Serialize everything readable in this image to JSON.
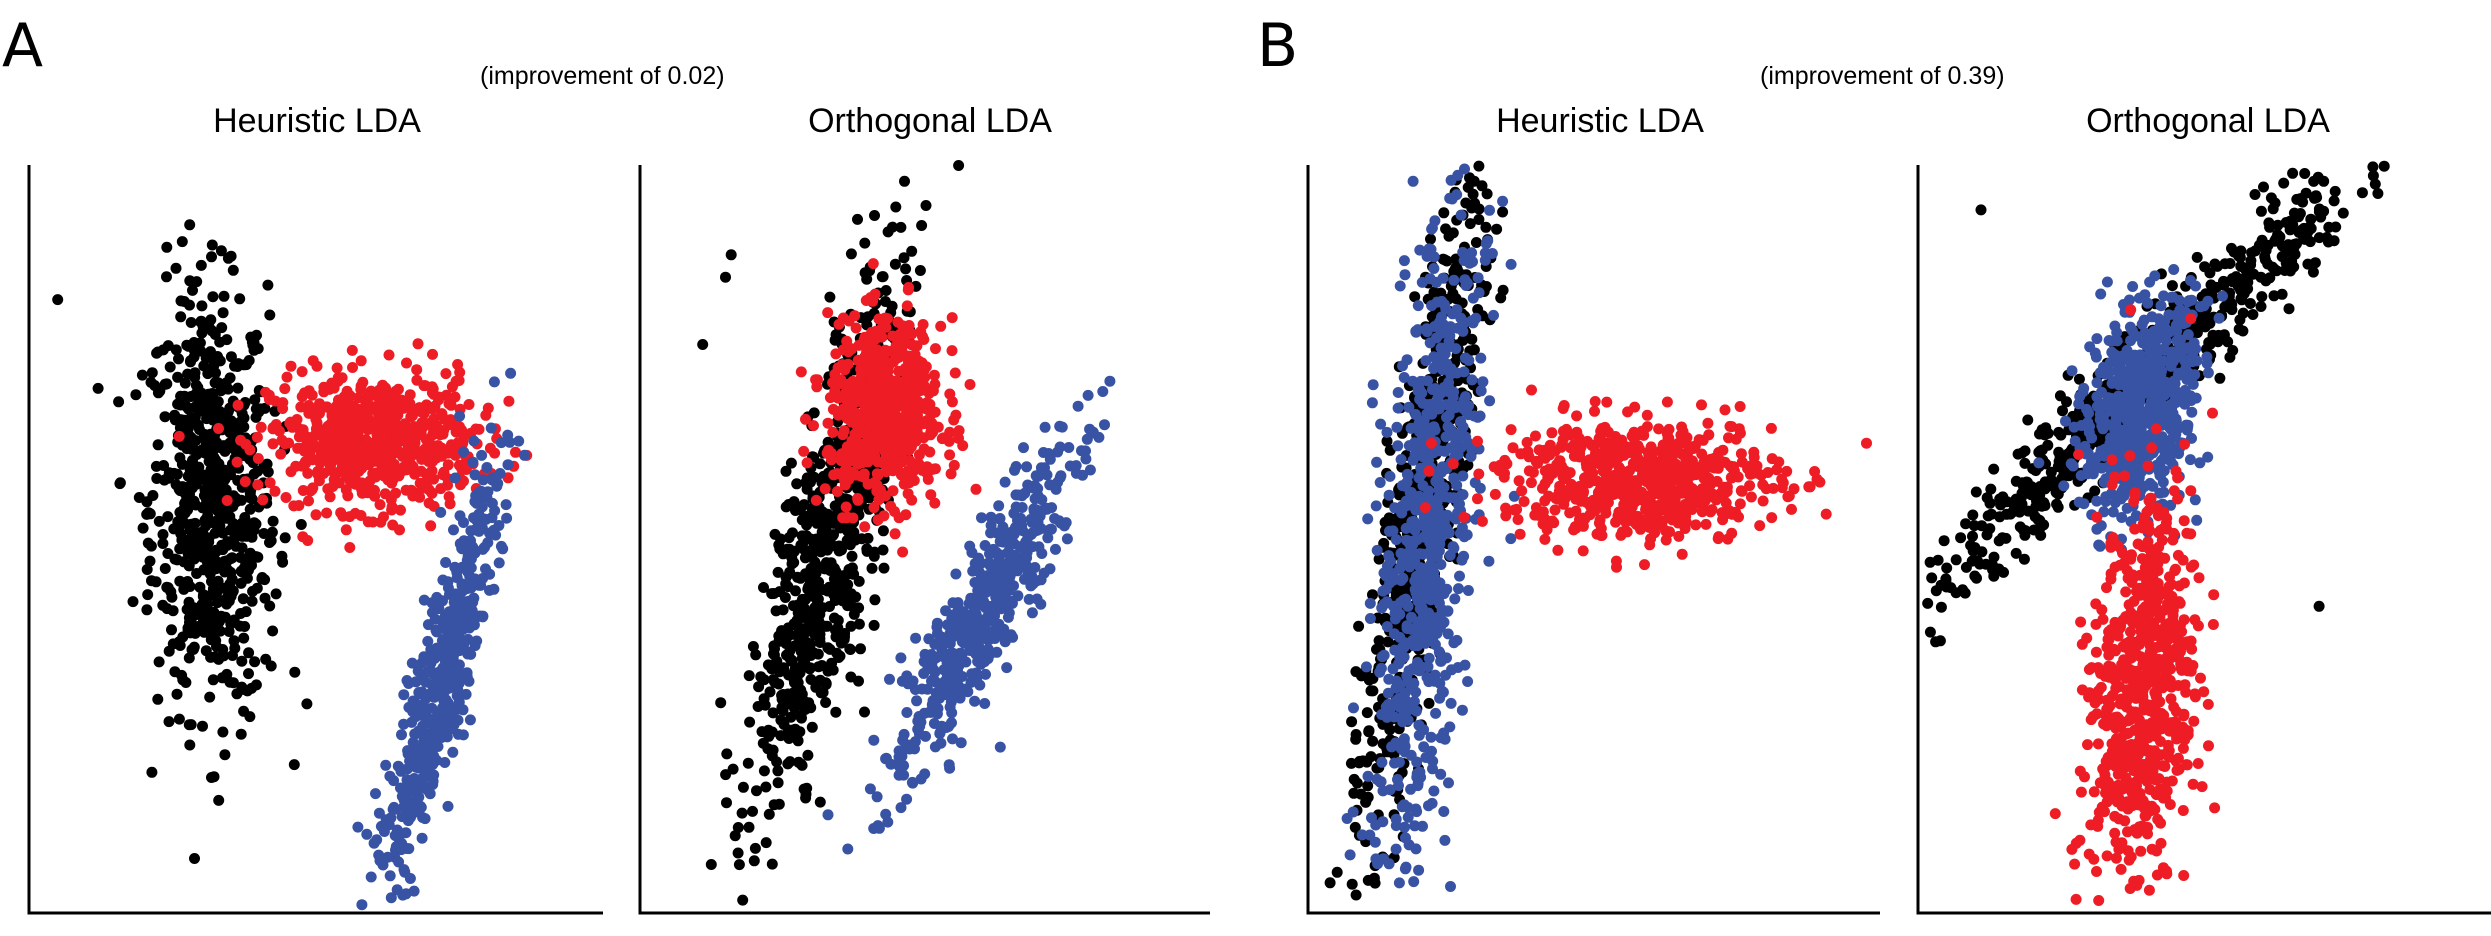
{
  "panels": [
    {
      "label": "A",
      "annotation": "(improvement of 0.02)"
    },
    {
      "label": "B",
      "annotation": "(improvement of 0.39)"
    }
  ],
  "colors": {
    "black": "#000000",
    "red": "#ee1c25",
    "blue": "#3953a4"
  },
  "chart_data": [
    {
      "type": "scatter",
      "title": "Heuristic LDA",
      "panel": "A",
      "grid": false,
      "xlim": [
        0,
        100
      ],
      "ylim": [
        0,
        100
      ],
      "series": [
        {
          "color": "black",
          "n": 700,
          "center": [
            32,
            55
          ],
          "spread": [
            5.5,
            14
          ],
          "rotation": -3
        },
        {
          "color": "red",
          "n": 650,
          "center": [
            60,
            63
          ],
          "spread": [
            9,
            4.5
          ],
          "rotation": 0
        },
        {
          "color": "blue",
          "n": 500,
          "center": [
            72,
            32
          ],
          "spread": [
            2.3,
            16
          ],
          "rotation": 18
        }
      ],
      "outliers": [
        [
          5,
          82
        ],
        [
          24,
          89
        ],
        [
          28,
          92
        ]
      ]
    },
    {
      "type": "scatter",
      "title": "Orthogonal LDA",
      "panel": "A",
      "grid": false,
      "xlim": [
        0,
        100
      ],
      "ylim": [
        0,
        100
      ],
      "series": [
        {
          "color": "black",
          "n": 700,
          "center": [
            33,
            50
          ],
          "spread": [
            4,
            20
          ],
          "rotation": 18
        },
        {
          "color": "red",
          "n": 650,
          "center": [
            43,
            67
          ],
          "spread": [
            5,
            6
          ],
          "rotation": 0
        },
        {
          "color": "blue",
          "n": 500,
          "center": [
            60,
            40
          ],
          "spread": [
            3,
            14
          ],
          "rotation": 35
        }
      ],
      "outliers": [
        [
          11,
          76
        ],
        [
          15,
          85
        ],
        [
          16,
          88
        ]
      ]
    },
    {
      "type": "scatter",
      "title": "Heuristic LDA",
      "panel": "B",
      "grid": false,
      "xlim": [
        0,
        100
      ],
      "ylim": [
        0,
        100
      ],
      "series": [
        {
          "color": "black",
          "n": 600,
          "center": [
            20,
            55
          ],
          "spread": [
            3.2,
            22
          ],
          "rotation": 12
        },
        {
          "color": "blue",
          "n": 700,
          "center": [
            21,
            50
          ],
          "spread": [
            4,
            22
          ],
          "rotation": 7
        },
        {
          "color": "red",
          "n": 650,
          "center": [
            58,
            58
          ],
          "spread": [
            12,
            4
          ],
          "rotation": 0
        }
      ],
      "outliers": [
        [
          28,
          97
        ],
        [
          8,
          16
        ]
      ]
    },
    {
      "type": "scatter",
      "title": "Orthogonal LDA",
      "panel": "B",
      "grid": false,
      "xlim": [
        0,
        100
      ],
      "ylim": [
        0,
        100
      ],
      "series": [
        {
          "color": "black",
          "n": 650,
          "center": [
            40,
            72
          ],
          "spread": [
            3,
            28
          ],
          "rotation": 52
        },
        {
          "color": "blue",
          "n": 600,
          "center": [
            39,
            67
          ],
          "spread": [
            4.5,
            8
          ],
          "rotation": 18
        },
        {
          "color": "red",
          "n": 700,
          "center": [
            39,
            30
          ],
          "spread": [
            4.5,
            14
          ],
          "rotation": 8
        }
      ],
      "outliers": [
        [
          11,
          94
        ],
        [
          70,
          41
        ]
      ]
    }
  ]
}
